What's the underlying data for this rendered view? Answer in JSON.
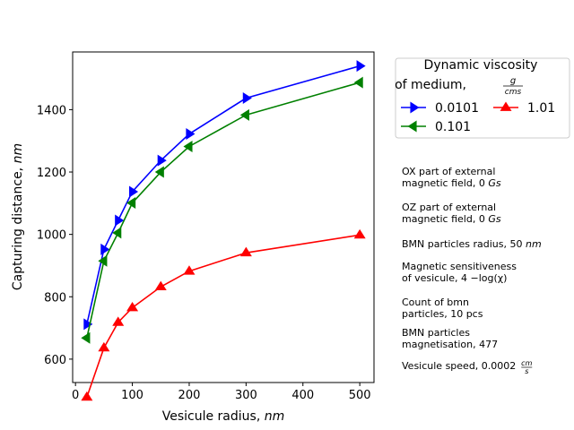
{
  "chart_data": {
    "type": "line",
    "xlabel": "Vesicule radius,",
    "xlabel_unit": "nm",
    "ylabel": "Capturing distance,",
    "ylabel_unit": "nm",
    "xlim": [
      -5,
      525
    ],
    "ylim": [
      525,
      1585
    ],
    "xticks": [
      0,
      100,
      200,
      300,
      400,
      500
    ],
    "yticks": [
      600,
      800,
      1000,
      1200,
      1400
    ],
    "grid": false,
    "x": [
      20,
      50,
      75,
      100,
      150,
      200,
      300,
      500
    ],
    "series": [
      {
        "name": "0.0101",
        "color": "#0000ff",
        "marker": "triangle-right",
        "values": [
          712,
          952,
          1045,
          1137,
          1237,
          1322,
          1437,
          1540
        ]
      },
      {
        "name": "0.101",
        "color": "#008000",
        "marker": "triangle-left",
        "values": [
          668,
          915,
          1005,
          1101,
          1200,
          1282,
          1383,
          1487
        ]
      },
      {
        "name": "1.01",
        "color": "#ff0000",
        "marker": "triangle-up",
        "values": [
          478,
          636,
          718,
          765,
          832,
          882,
          941,
          998
        ]
      }
    ],
    "legend": {
      "title_line1": "Dynamic viscosity",
      "title_line2": "of medium,",
      "unit_num": "g",
      "unit_den": "cms",
      "placement": "outside-right-top"
    }
  },
  "notes": [
    {
      "line1": "OX part of external",
      "line2": "magnetic field, 0",
      "unit": "Gs"
    },
    {
      "line1": "OZ part of external",
      "line2": "magnetic field, 0",
      "unit": "Gs"
    },
    {
      "line1": "BMN particles radius, 50",
      "unit": "nm"
    },
    {
      "line1": "Magnetic sensitiveness",
      "line2": "of vesicule, 4 −log(χ)"
    },
    {
      "line1": "Count of bmn",
      "line2": "particles, 10  pcs"
    },
    {
      "line1": "BMN particles",
      "line2": "magnetisation, 477"
    },
    {
      "line1": "Vesicule speed, 0.0002",
      "unit_num": "cm",
      "unit_den": "s"
    }
  ]
}
